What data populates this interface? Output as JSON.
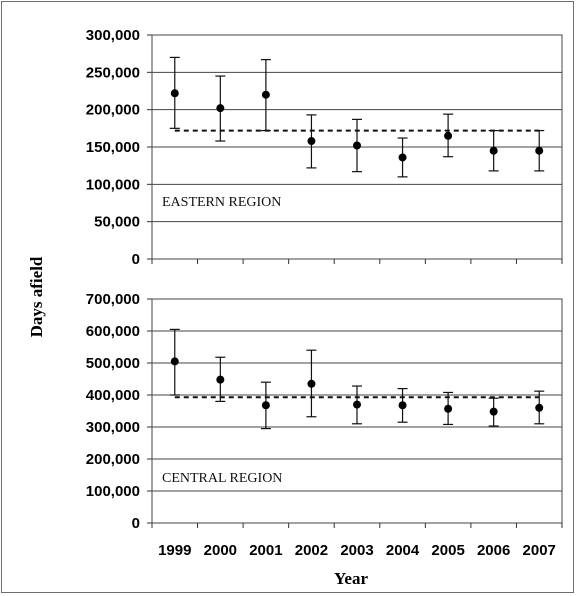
{
  "chart_data": {
    "type": "scatter",
    "ylabel": "Days afield",
    "xlabel": "Year",
    "x": [
      "1999",
      "2000",
      "2001",
      "2002",
      "2003",
      "2004",
      "2005",
      "2006",
      "2007"
    ],
    "panels": [
      {
        "label": "EASTERN REGION",
        "ylim": [
          0,
          300000
        ],
        "yticks": [
          0,
          50000,
          100000,
          150000,
          200000,
          250000,
          300000
        ],
        "ytick_labels": [
          "0",
          "50,000",
          "100,000",
          "150,000",
          "200,000",
          "250,000",
          "300,000"
        ],
        "values": [
          222000,
          202000,
          220000,
          158000,
          152000,
          136000,
          165000,
          145000,
          145000
        ],
        "lower": [
          175000,
          158000,
          172000,
          122000,
          117000,
          110000,
          137000,
          118000,
          118000
        ],
        "upper": [
          270000,
          245000,
          267000,
          193000,
          187000,
          162000,
          194000,
          172000,
          172000
        ],
        "mean_line": 172000
      },
      {
        "label": "CENTRAL REGION",
        "ylim": [
          0,
          700000
        ],
        "yticks": [
          0,
          100000,
          200000,
          300000,
          400000,
          500000,
          600000,
          700000
        ],
        "ytick_labels": [
          "0",
          "100,000",
          "200,000",
          "300,000",
          "400,000",
          "500,000",
          "600,000",
          "700,000"
        ],
        "values": [
          505000,
          448000,
          368000,
          435000,
          370000,
          368000,
          357000,
          348000,
          360000
        ],
        "lower": [
          400000,
          380000,
          295000,
          332000,
          310000,
          315000,
          308000,
          303000,
          310000
        ],
        "upper": [
          605000,
          518000,
          440000,
          540000,
          428000,
          420000,
          408000,
          390000,
          412000
        ],
        "mean_line": 393000
      }
    ]
  }
}
